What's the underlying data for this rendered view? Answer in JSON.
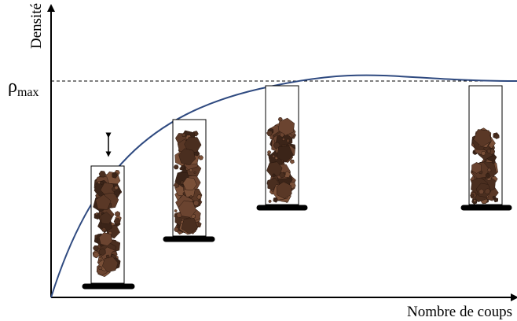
{
  "axes": {
    "y_label": "Densité",
    "x_label": "Nombre de coups",
    "rho_symbol": "ρ",
    "rho_subscript": "max"
  }
}
